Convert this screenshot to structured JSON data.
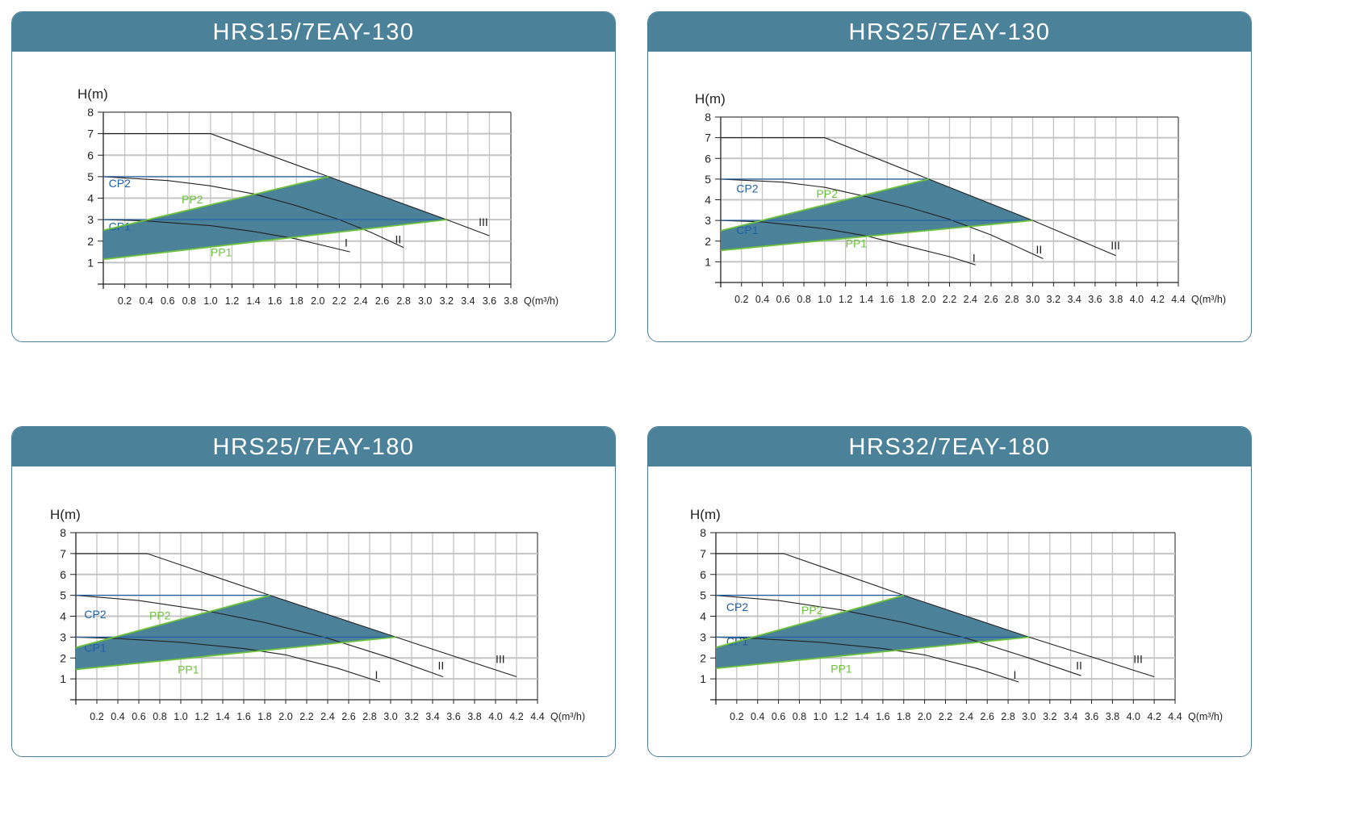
{
  "colors": {
    "header": "#4b8199",
    "fill": "#4b8199",
    "cp": "#1f5fa8",
    "pp": "#6cc33a",
    "curve": "#222222"
  },
  "chart_data": [
    {
      "type": "line",
      "title": "HRS15/7EAY-130",
      "ylabel": "H(m)",
      "xlabel": "Q(m³/h)",
      "xlim": [
        0,
        3.8
      ],
      "ylim": [
        0,
        8
      ],
      "grid": true,
      "x_ticks": [
        "0.2",
        "0.4",
        "0.6",
        "0.8",
        "1.0",
        "1.2",
        "1.4",
        "1.6",
        "1.8",
        "2.0",
        "2.2",
        "2.4",
        "2.6",
        "2.8",
        "3.0",
        "3.2",
        "3.4",
        "3.6",
        "3.8"
      ],
      "y_ticks": [
        "1",
        "2",
        "3",
        "4",
        "5",
        "6",
        "7",
        "8"
      ],
      "series": [
        {
          "name": "III",
          "points": [
            [
              0,
              7
            ],
            [
              1.0,
              7
            ],
            [
              2.1,
              5
            ],
            [
              3.2,
              3
            ],
            [
              3.6,
              2.25
            ]
          ],
          "label_at": [
            3.5,
            2.7
          ]
        },
        {
          "name": "II",
          "points": [
            [
              0,
              5
            ],
            [
              0.6,
              4.82
            ],
            [
              1.0,
              4.57
            ],
            [
              1.4,
              4.2
            ],
            [
              1.8,
              3.65
            ],
            [
              2.2,
              3.0
            ],
            [
              2.5,
              2.4
            ],
            [
              2.8,
              1.7
            ]
          ],
          "label_at": [
            2.72,
            1.9
          ]
        },
        {
          "name": "I",
          "points": [
            [
              0,
              3
            ],
            [
              0.4,
              2.94
            ],
            [
              1.0,
              2.72
            ],
            [
              1.4,
              2.45
            ],
            [
              1.8,
              2.1
            ],
            [
              2.3,
              1.5
            ]
          ],
          "label_at": [
            2.25,
            1.75
          ]
        },
        {
          "name": "CP2",
          "points": [
            [
              0,
              5
            ],
            [
              2.1,
              5
            ]
          ],
          "label_at": [
            0.05,
            4.5
          ]
        },
        {
          "name": "CP1",
          "points": [
            [
              0,
              3
            ],
            [
              3.2,
              3
            ]
          ],
          "label_at": [
            0.05,
            2.5
          ]
        },
        {
          "name": "PP2",
          "points": [
            [
              0,
              2.5
            ],
            [
              2.1,
              5
            ]
          ],
          "label_at": [
            0.73,
            3.75
          ]
        },
        {
          "name": "PP1",
          "points": [
            [
              0,
              1.15
            ],
            [
              3.2,
              3
            ]
          ],
          "label_at": [
            1.0,
            1.3
          ]
        }
      ],
      "shaded_region": [
        [
          0,
          1.15
        ],
        [
          0,
          2.5
        ],
        [
          2.1,
          5
        ],
        [
          3.2,
          3
        ]
      ]
    },
    {
      "type": "line",
      "title": "HRS25/7EAY-130",
      "ylabel": "H(m)",
      "xlabel": "Q(m³/h)",
      "xlim": [
        0,
        4.4
      ],
      "ylim": [
        0,
        8
      ],
      "grid": true,
      "x_ticks": [
        "0.2",
        "0.4",
        "0.6",
        "0.8",
        "1.0",
        "1.2",
        "1.4",
        "1.6",
        "1.8",
        "2.0",
        "2.2",
        "2.4",
        "2.6",
        "2.8",
        "3.0",
        "3.2",
        "3.4",
        "3.6",
        "3.8",
        "4.0",
        "4.2",
        "4.4"
      ],
      "y_ticks": [
        "1",
        "2",
        "3",
        "4",
        "5",
        "6",
        "7",
        "8"
      ],
      "series": [
        {
          "name": "III",
          "points": [
            [
              0,
              7
            ],
            [
              1.0,
              7
            ],
            [
              2.0,
              5
            ],
            [
              3.0,
              3
            ],
            [
              3.8,
              1.3
            ]
          ],
          "label_at": [
            3.75,
            1.6
          ]
        },
        {
          "name": "II",
          "points": [
            [
              0,
              5
            ],
            [
              0.6,
              4.85
            ],
            [
              1.0,
              4.6
            ],
            [
              1.4,
              4.15
            ],
            [
              1.8,
              3.65
            ],
            [
              2.2,
              3.05
            ],
            [
              2.6,
              2.3
            ],
            [
              3.1,
              1.15
            ]
          ],
          "label_at": [
            3.03,
            1.4
          ]
        },
        {
          "name": "I",
          "points": [
            [
              0,
              3
            ],
            [
              0.4,
              2.93
            ],
            [
              1.0,
              2.6
            ],
            [
              1.4,
              2.25
            ],
            [
              1.8,
              1.75
            ],
            [
              2.2,
              1.25
            ],
            [
              2.45,
              0.85
            ]
          ],
          "label_at": [
            2.42,
            1.0
          ]
        },
        {
          "name": "CP2",
          "points": [
            [
              0,
              5
            ],
            [
              2.0,
              5
            ]
          ],
          "label_at": [
            0.15,
            4.35
          ]
        },
        {
          "name": "CP1",
          "points": [
            [
              0,
              3
            ],
            [
              3.0,
              3
            ]
          ],
          "label_at": [
            0.15,
            2.35
          ]
        },
        {
          "name": "PP2",
          "points": [
            [
              0,
              2.5
            ],
            [
              2.0,
              5
            ]
          ],
          "label_at": [
            0.92,
            4.1
          ]
        },
        {
          "name": "PP1",
          "points": [
            [
              0,
              1.55
            ],
            [
              3.0,
              3
            ]
          ],
          "label_at": [
            1.2,
            1.7
          ]
        }
      ],
      "shaded_region": [
        [
          0,
          1.55
        ],
        [
          0,
          2.5
        ],
        [
          2.0,
          5
        ],
        [
          3.0,
          3
        ]
      ]
    },
    {
      "type": "line",
      "title": "HRS25/7EAY-180",
      "ylabel": "H(m)",
      "xlabel": "Q(m³/h)",
      "xlim": [
        0,
        4.4
      ],
      "ylim": [
        0,
        8
      ],
      "grid": true,
      "x_ticks": [
        "0.2",
        "0.4",
        "0.6",
        "0.8",
        "1.0",
        "1.2",
        "1.4",
        "1.6",
        "1.8",
        "2.0",
        "2.2",
        "2.4",
        "2.6",
        "2.8",
        "3.0",
        "3.2",
        "3.4",
        "3.6",
        "3.8",
        "4.0",
        "4.2",
        "4.4"
      ],
      "y_ticks": [
        "1",
        "2",
        "3",
        "4",
        "5",
        "6",
        "7",
        "8"
      ],
      "series": [
        {
          "name": "III",
          "points": [
            [
              0,
              7
            ],
            [
              0.68,
              7
            ],
            [
              1.85,
              5
            ],
            [
              3.05,
              3
            ],
            [
              4.2,
              1.1
            ]
          ],
          "label_at": [
            4.0,
            1.75
          ]
        },
        {
          "name": "II",
          "points": [
            [
              0,
              5
            ],
            [
              0.6,
              4.75
            ],
            [
              1.2,
              4.3
            ],
            [
              1.8,
              3.7
            ],
            [
              2.4,
              2.95
            ],
            [
              3.0,
              2.0
            ],
            [
              3.5,
              1.1
            ]
          ],
          "label_at": [
            3.45,
            1.45
          ]
        },
        {
          "name": "I",
          "points": [
            [
              0,
              3
            ],
            [
              0.4,
              2.93
            ],
            [
              1.0,
              2.75
            ],
            [
              1.6,
              2.45
            ],
            [
              2.0,
              2.15
            ],
            [
              2.5,
              1.5
            ],
            [
              2.9,
              0.85
            ]
          ],
          "label_at": [
            2.85,
            1.0
          ]
        },
        {
          "name": "CP2",
          "points": [
            [
              0,
              5
            ],
            [
              1.85,
              5
            ]
          ],
          "label_at": [
            0.08,
            3.9
          ]
        },
        {
          "name": "CP1",
          "points": [
            [
              0,
              3
            ],
            [
              3.05,
              3
            ]
          ],
          "label_at": [
            0.08,
            2.3
          ]
        },
        {
          "name": "PP2",
          "points": [
            [
              0,
              2.5
            ],
            [
              1.85,
              5
            ]
          ],
          "label_at": [
            0.7,
            3.85
          ]
        },
        {
          "name": "PP1",
          "points": [
            [
              0,
              1.45
            ],
            [
              3.05,
              3
            ]
          ],
          "label_at": [
            0.97,
            1.25
          ]
        }
      ],
      "shaded_region": [
        [
          0,
          1.45
        ],
        [
          0,
          2.5
        ],
        [
          1.85,
          5
        ],
        [
          3.05,
          3
        ]
      ]
    },
    {
      "type": "line",
      "title": "HRS32/7EAY-180",
      "ylabel": "H(m)",
      "xlabel": "Q(m³/h)",
      "xlim": [
        0,
        4.4
      ],
      "ylim": [
        0,
        8
      ],
      "grid": true,
      "x_ticks": [
        "0.2",
        "0.4",
        "0.6",
        "0.8",
        "1.0",
        "1.2",
        "1.4",
        "1.6",
        "1.8",
        "2.0",
        "2.2",
        "2.4",
        "2.6",
        "2.8",
        "3.0",
        "3.2",
        "3.4",
        "3.6",
        "3.8",
        "4.0",
        "4.2",
        "4.4"
      ],
      "y_ticks": [
        "1",
        "2",
        "3",
        "4",
        "5",
        "6",
        "7",
        "8"
      ],
      "series": [
        {
          "name": "III",
          "points": [
            [
              0,
              7
            ],
            [
              0.65,
              7
            ],
            [
              1.8,
              5
            ],
            [
              3.0,
              3
            ],
            [
              4.2,
              1.1
            ]
          ],
          "label_at": [
            4.0,
            1.75
          ]
        },
        {
          "name": "II",
          "points": [
            [
              0,
              5
            ],
            [
              0.6,
              4.75
            ],
            [
              1.2,
              4.3
            ],
            [
              1.8,
              3.7
            ],
            [
              2.4,
              2.95
            ],
            [
              3.0,
              2.0
            ],
            [
              3.5,
              1.15
            ]
          ],
          "label_at": [
            3.45,
            1.45
          ]
        },
        {
          "name": "I",
          "points": [
            [
              0,
              3
            ],
            [
              0.4,
              2.93
            ],
            [
              1.0,
              2.75
            ],
            [
              1.6,
              2.45
            ],
            [
              2.0,
              2.15
            ],
            [
              2.5,
              1.5
            ],
            [
              2.9,
              0.85
            ]
          ],
          "label_at": [
            2.85,
            1.0
          ]
        },
        {
          "name": "CP2",
          "points": [
            [
              0,
              5
            ],
            [
              1.8,
              5
            ]
          ],
          "label_at": [
            0.1,
            4.25
          ]
        },
        {
          "name": "CP1",
          "points": [
            [
              0,
              3
            ],
            [
              3.0,
              3
            ]
          ],
          "label_at": [
            0.1,
            2.6
          ]
        },
        {
          "name": "PP2",
          "points": [
            [
              0,
              2.5
            ],
            [
              1.8,
              5
            ]
          ],
          "label_at": [
            0.82,
            4.1
          ]
        },
        {
          "name": "PP1",
          "points": [
            [
              0,
              1.5
            ],
            [
              3.0,
              3
            ]
          ],
          "label_at": [
            1.1,
            1.3
          ]
        }
      ],
      "shaded_region": [
        [
          0,
          1.5
        ],
        [
          0,
          2.5
        ],
        [
          1.8,
          5
        ],
        [
          3.0,
          3
        ]
      ]
    }
  ]
}
